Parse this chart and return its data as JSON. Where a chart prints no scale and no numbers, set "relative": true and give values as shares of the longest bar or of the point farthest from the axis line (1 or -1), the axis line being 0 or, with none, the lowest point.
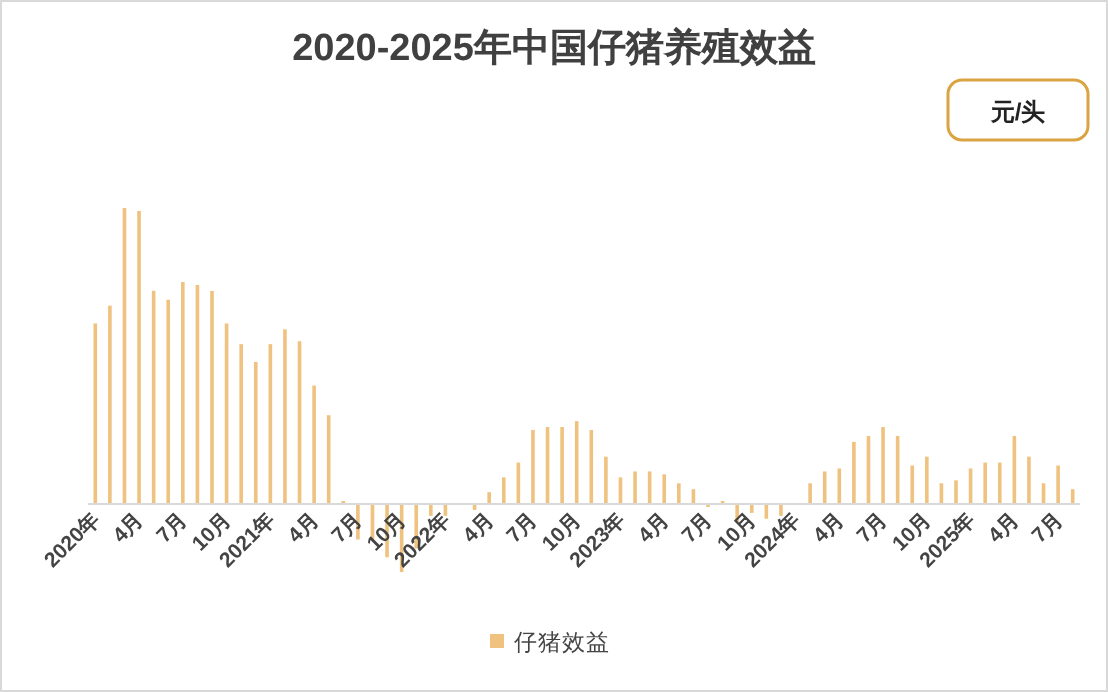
{
  "chart_data": {
    "type": "bar",
    "title": "2020-2025年中国仔猪养殖效益",
    "relative": true,
    "legend": "bottom",
    "annotations": [
      "元/头"
    ],
    "categories": [
      "2020年",
      null,
      null,
      "4月",
      null,
      null,
      "7月",
      null,
      null,
      "10月",
      null,
      null,
      "2021年",
      null,
      null,
      "4月",
      null,
      null,
      "7月",
      null,
      null,
      "10月",
      null,
      null,
      "2022年",
      null,
      null,
      "4月",
      null,
      null,
      "7月",
      null,
      null,
      "10月",
      null,
      null,
      "2023年",
      null,
      null,
      "4月",
      null,
      null,
      "7月",
      null,
      null,
      "10月",
      null,
      null,
      "2024年",
      null,
      null,
      "4月",
      null,
      null,
      "7月",
      null,
      null,
      "10月",
      null,
      null,
      "2025年",
      null,
      null,
      "4月",
      null,
      null,
      "7月",
      null
    ],
    "series": [
      {
        "name": "仔猪效益",
        "color": "#efc27f",
        "values": [
          0.61,
          0.67,
          1.0,
          0.99,
          0.72,
          0.69,
          0.75,
          0.74,
          0.72,
          0.61,
          0.54,
          0.48,
          0.54,
          0.59,
          0.55,
          0.4,
          0.3,
          0.01,
          -0.12,
          -0.12,
          -0.18,
          -0.23,
          -0.15,
          -0.04,
          -0.04,
          0.0,
          -0.02,
          0.04,
          0.09,
          0.14,
          0.25,
          0.26,
          0.26,
          0.28,
          0.25,
          0.16,
          0.09,
          0.11,
          0.11,
          0.1,
          0.07,
          0.05,
          -0.01,
          0.01,
          -0.06,
          -0.03,
          -0.05,
          -0.04,
          0.0,
          0.07,
          0.11,
          0.12,
          0.21,
          0.23,
          0.26,
          0.23,
          0.13,
          0.16,
          0.07,
          0.08,
          0.12,
          0.14,
          0.14,
          0.23,
          0.16,
          0.07,
          0.13,
          0.05
        ]
      }
    ]
  }
}
